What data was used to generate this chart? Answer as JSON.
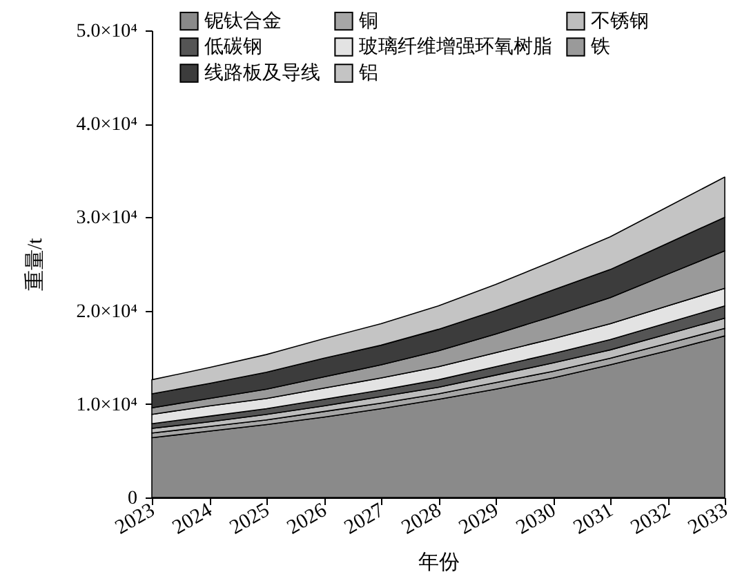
{
  "chart_data": {
    "type": "area",
    "stacked": true,
    "xlabel": "年份",
    "ylabel": "重量/t",
    "x": [
      2023,
      2024,
      2025,
      2026,
      2027,
      2028,
      2029,
      2030,
      2031,
      2032,
      2033
    ],
    "xlim": [
      2023,
      2033
    ],
    "xticks": [
      2023,
      2024,
      2025,
      2026,
      2027,
      2028,
      2029,
      2030,
      2031,
      2032,
      2033
    ],
    "ylim": [
      0,
      50000
    ],
    "yticks": [
      0,
      {
        "value": 10000,
        "label": "1.0×10⁴"
      },
      {
        "value": 20000,
        "label": "2.0×10⁴"
      },
      {
        "value": 30000,
        "label": "3.0×10⁴"
      },
      {
        "value": 40000,
        "label": "4.0×10⁴"
      },
      {
        "value": 50000,
        "label": "5.0×10⁴"
      }
    ],
    "legend": "top left",
    "grid": false,
    "series": [
      {
        "name": "铌钛合金",
        "color": "#8a8a8a",
        "values": [
          6400,
          7100,
          7800,
          8600,
          9500,
          10500,
          11600,
          12800,
          14200,
          15700,
          17300
        ]
      },
      {
        "name": "铜",
        "color": "#a6a6a6",
        "values": [
          500,
          500,
          500,
          600,
          600,
          600,
          700,
          700,
          700,
          800,
          800
        ]
      },
      {
        "name": "不锈钢",
        "color": "#bdbdbd",
        "values": [
          500,
          500,
          600,
          600,
          700,
          700,
          800,
          900,
          900,
          1000,
          1100
        ]
      },
      {
        "name": "低碳钢",
        "color": "#555555",
        "values": [
          500,
          600,
          600,
          700,
          700,
          800,
          900,
          1000,
          1100,
          1200,
          1300
        ]
      },
      {
        "name": "玻璃纤维增强环氧树脂",
        "color": "#e3e3e3",
        "values": [
          1000,
          1100,
          1100,
          1200,
          1300,
          1400,
          1500,
          1600,
          1700,
          1800,
          1900
        ]
      },
      {
        "name": "铁",
        "color": "#9a9a9a",
        "values": [
          700,
          800,
          1000,
          1200,
          1400,
          1700,
          2000,
          2400,
          2800,
          3400,
          4000
        ]
      },
      {
        "name": "线路板及导线",
        "color": "#3c3c3c",
        "values": [
          1500,
          1600,
          1800,
          2000,
          2100,
          2300,
          2500,
          2800,
          3000,
          3300,
          3600
        ]
      },
      {
        "name": "铝",
        "color": "#c4c4c4",
        "values": [
          1500,
          1700,
          1900,
          2100,
          2300,
          2500,
          2800,
          3100,
          3500,
          3900,
          4300
        ]
      }
    ]
  }
}
